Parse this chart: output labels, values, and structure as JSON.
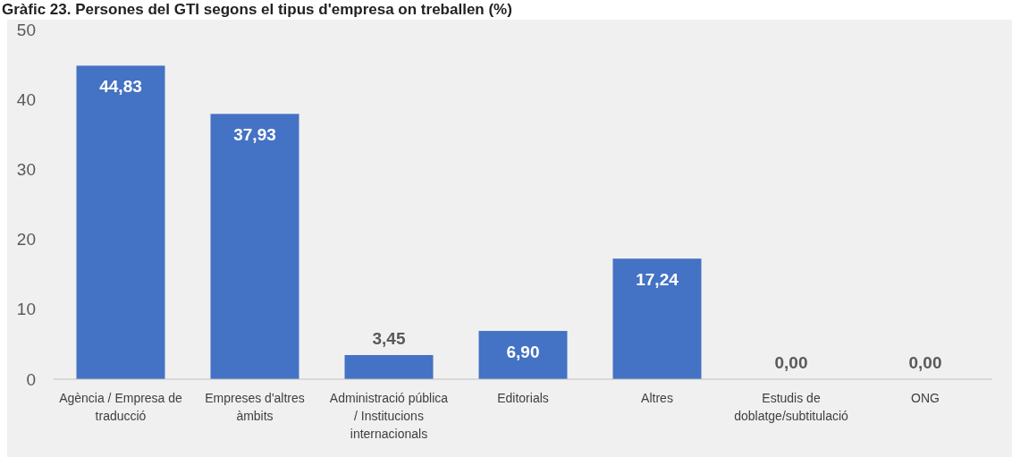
{
  "chart_data": {
    "type": "bar",
    "title": "Gràfic 23. Persones del GTI segons el tipus d'empresa on treballen (%)",
    "categories": [
      "Agència / Empresa de traducció",
      "Empreses d'altres àmbits",
      "Administració pública / Institucions internacionals",
      "Editorials",
      "Altres",
      "Estudis de doblatge/subtitulació",
      "ONG"
    ],
    "values": [
      44.83,
      37.93,
      3.45,
      6.9,
      17.24,
      0,
      0
    ],
    "value_labels": [
      "44,83",
      "37,93",
      "3,45",
      "6,90",
      "17,24",
      "0,00",
      "0,00"
    ],
    "color": "#4472c4",
    "ylim": [
      0,
      50
    ],
    "yticks": [
      0,
      10,
      20,
      30,
      40,
      50
    ],
    "grid": false
  }
}
